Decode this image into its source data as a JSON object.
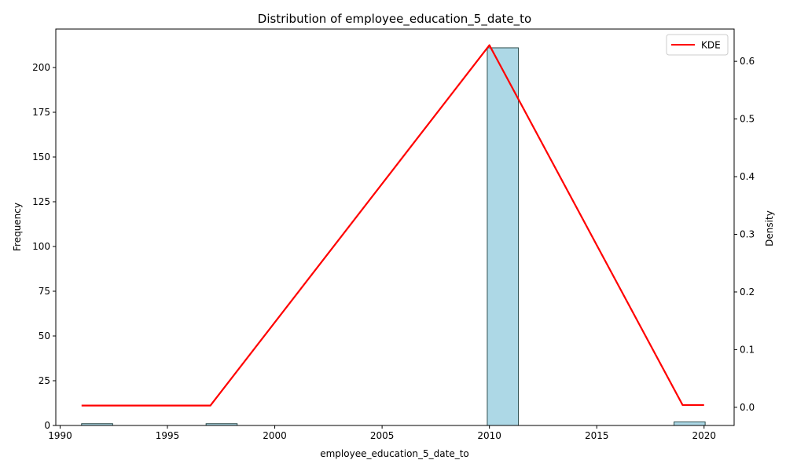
{
  "chart_data": {
    "type": "bar",
    "title": "Distribution of employee_education_5_date_to",
    "xlabel": "employee_education_5_date_to",
    "ylabel": "Frequency",
    "y2label": "Density",
    "xlim": [
      1989.8,
      2021.4
    ],
    "ylim": [
      0,
      221.5
    ],
    "y2lim": [
      -0.0315,
      0.656
    ],
    "xticks": [
      "1990",
      "1995",
      "2000",
      "2005",
      "2010",
      "2015",
      "2020"
    ],
    "yticks": [
      "0",
      "25",
      "50",
      "75",
      "100",
      "125",
      "150",
      "175",
      "200"
    ],
    "y2ticks": [
      "0.0",
      "0.1",
      "0.2",
      "0.3",
      "0.4",
      "0.5",
      "0.6"
    ],
    "histogram": {
      "color": "#add8e6",
      "edge_color": "#2f4f4f",
      "bins": [
        {
          "start": 1991.0,
          "end": 1992.45,
          "count": 1
        },
        {
          "start": 1996.8,
          "end": 1998.25,
          "count": 1
        },
        {
          "start": 2009.9,
          "end": 2011.35,
          "count": 211
        },
        {
          "start": 2018.6,
          "end": 2020.05,
          "count": 2
        }
      ]
    },
    "series": [
      {
        "name": "KDE",
        "color": "#ff0000",
        "x": [
          1991,
          1997,
          2010,
          2019,
          2020
        ],
        "y": [
          0.003,
          0.003,
          0.628,
          0.004,
          0.004
        ]
      }
    ],
    "legend": "top-right",
    "grid": false
  }
}
